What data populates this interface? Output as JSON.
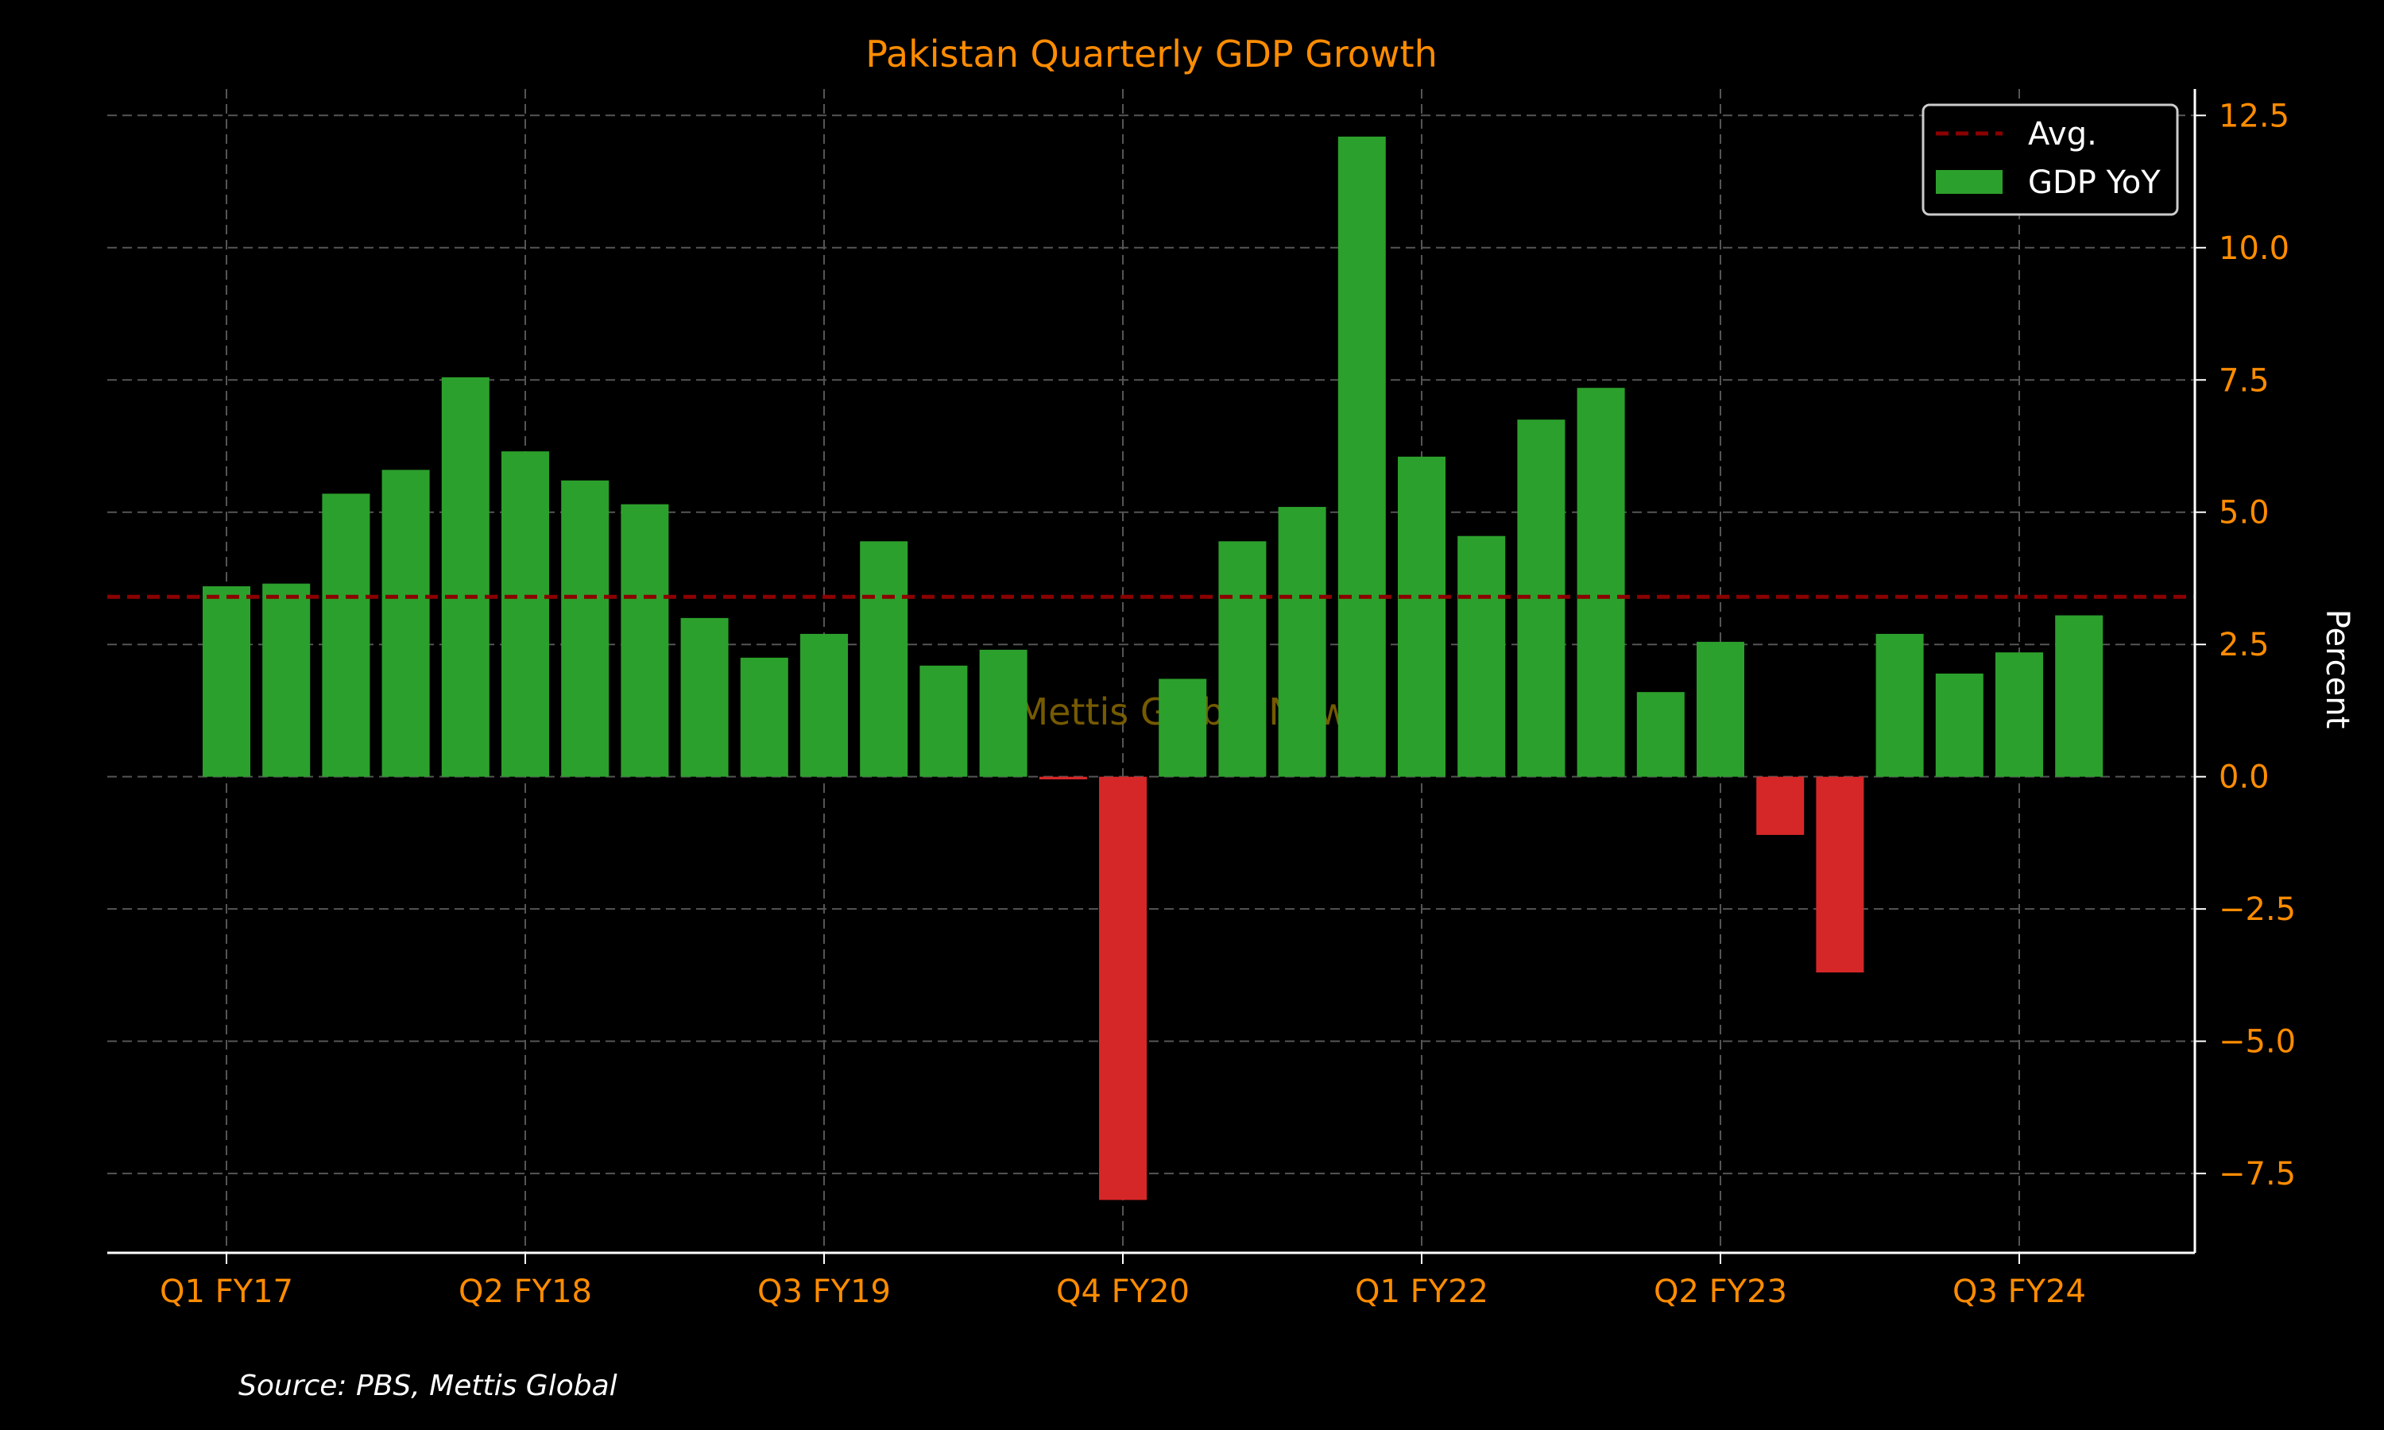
{
  "chart_data": {
    "type": "bar",
    "title": "Pakistan Quarterly GDP Growth",
    "ylabel": "Percent",
    "xlabel": "",
    "ylim": [
      -9.0,
      13.0
    ],
    "yticks": [
      12.5,
      10.0,
      7.5,
      5.0,
      2.5,
      0.0,
      -2.5,
      -5.0,
      -7.5
    ],
    "ytick_labels": [
      "12.5",
      "10.0",
      "7.5",
      "5.0",
      "2.5",
      "0.0",
      "−2.5",
      "−5.0",
      "−7.5"
    ],
    "xtick_labels": [
      "Q1 FY17",
      "Q2 FY18",
      "Q3 FY19",
      "Q4 FY20",
      "Q1 FY22",
      "Q2 FY23",
      "Q3 FY24"
    ],
    "xtick_indices": [
      0,
      5,
      10,
      15,
      20,
      25,
      30
    ],
    "values": [
      3.6,
      3.65,
      5.35,
      5.8,
      7.55,
      6.15,
      5.6,
      5.15,
      3.0,
      2.25,
      2.7,
      4.45,
      2.1,
      2.4,
      -0.05,
      -8.0,
      1.85,
      4.45,
      5.1,
      12.1,
      6.05,
      4.55,
      6.75,
      7.35,
      1.6,
      2.55,
      -1.1,
      -3.7,
      2.7,
      1.95,
      2.35,
      3.05
    ],
    "average": 3.4,
    "grid": true,
    "legend_position": "top-right",
    "legend": [
      {
        "label": "Avg.",
        "type": "dashed-line",
        "color": "#8b0000"
      },
      {
        "label": "GDP YoY",
        "type": "patch",
        "color": "#2ca02c"
      }
    ],
    "colors": {
      "positive": "#2ca02c",
      "negative": "#d62728",
      "average": "#8b0000",
      "tick": "#ff8c00",
      "title": "#ff8c00",
      "background": "#000000",
      "grid": "#555555"
    },
    "watermark": "Mettis Global News",
    "source": "Source: PBS, Mettis Global"
  }
}
